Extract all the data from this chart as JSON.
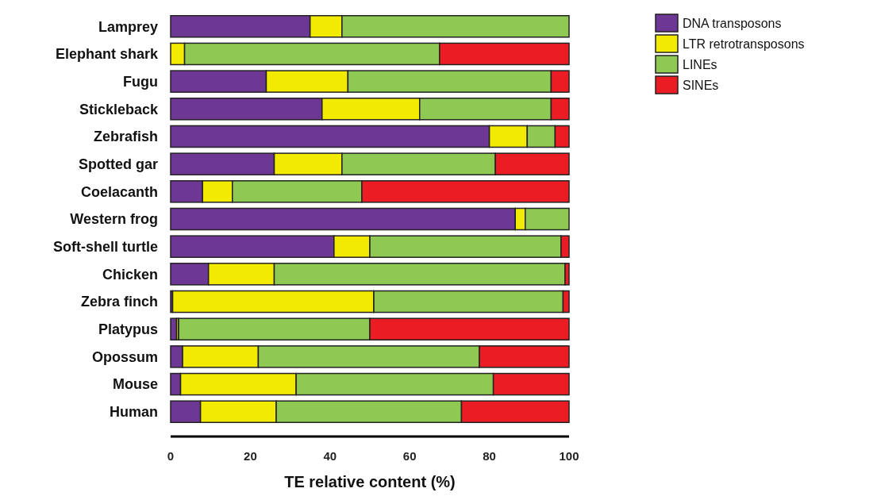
{
  "chart_data": {
    "type": "bar",
    "orientation": "horizontal",
    "stacked": true,
    "xlabel": "TE relative content (%)",
    "xlim": [
      0,
      100
    ],
    "xticks": [
      0,
      20,
      40,
      60,
      80,
      100
    ],
    "grid": false,
    "legend": "top right",
    "categories": [
      "Lamprey",
      "Elephant shark",
      "Fugu",
      "Stickleback",
      "Zebrafish",
      "Spotted gar",
      "Coelacanth",
      "Western frog",
      "Soft-shell turtle",
      "Chicken",
      "Zebra finch",
      "Platypus",
      "Opossum",
      "Mouse",
      "Human"
    ],
    "series": [
      {
        "name": "DNA transposons",
        "color": "#6d3893",
        "values": [
          35,
          0,
          24,
          38,
          80,
          26,
          8,
          86.5,
          41,
          9.5,
          0.5,
          1.5,
          3,
          2.5,
          7.5
        ]
      },
      {
        "name": "LTR retrotransposons",
        "color": "#f2ea00",
        "values": [
          8,
          3.5,
          20.5,
          24.5,
          9.5,
          17,
          7.5,
          2.5,
          9,
          16.5,
          50.5,
          0.5,
          19,
          29,
          19
        ]
      },
      {
        "name": "LINEs",
        "color": "#8fc853",
        "values": [
          57,
          64,
          51,
          33,
          7,
          38.5,
          32.5,
          11,
          48,
          73,
          47.5,
          48,
          55.5,
          49.5,
          46.5
        ]
      },
      {
        "name": "SINEs",
        "color": "#ec1c24",
        "values": [
          0,
          32.5,
          4.5,
          4.5,
          3.5,
          18.5,
          52,
          0,
          2,
          1,
          1.5,
          50,
          22.5,
          19,
          27
        ]
      }
    ]
  }
}
